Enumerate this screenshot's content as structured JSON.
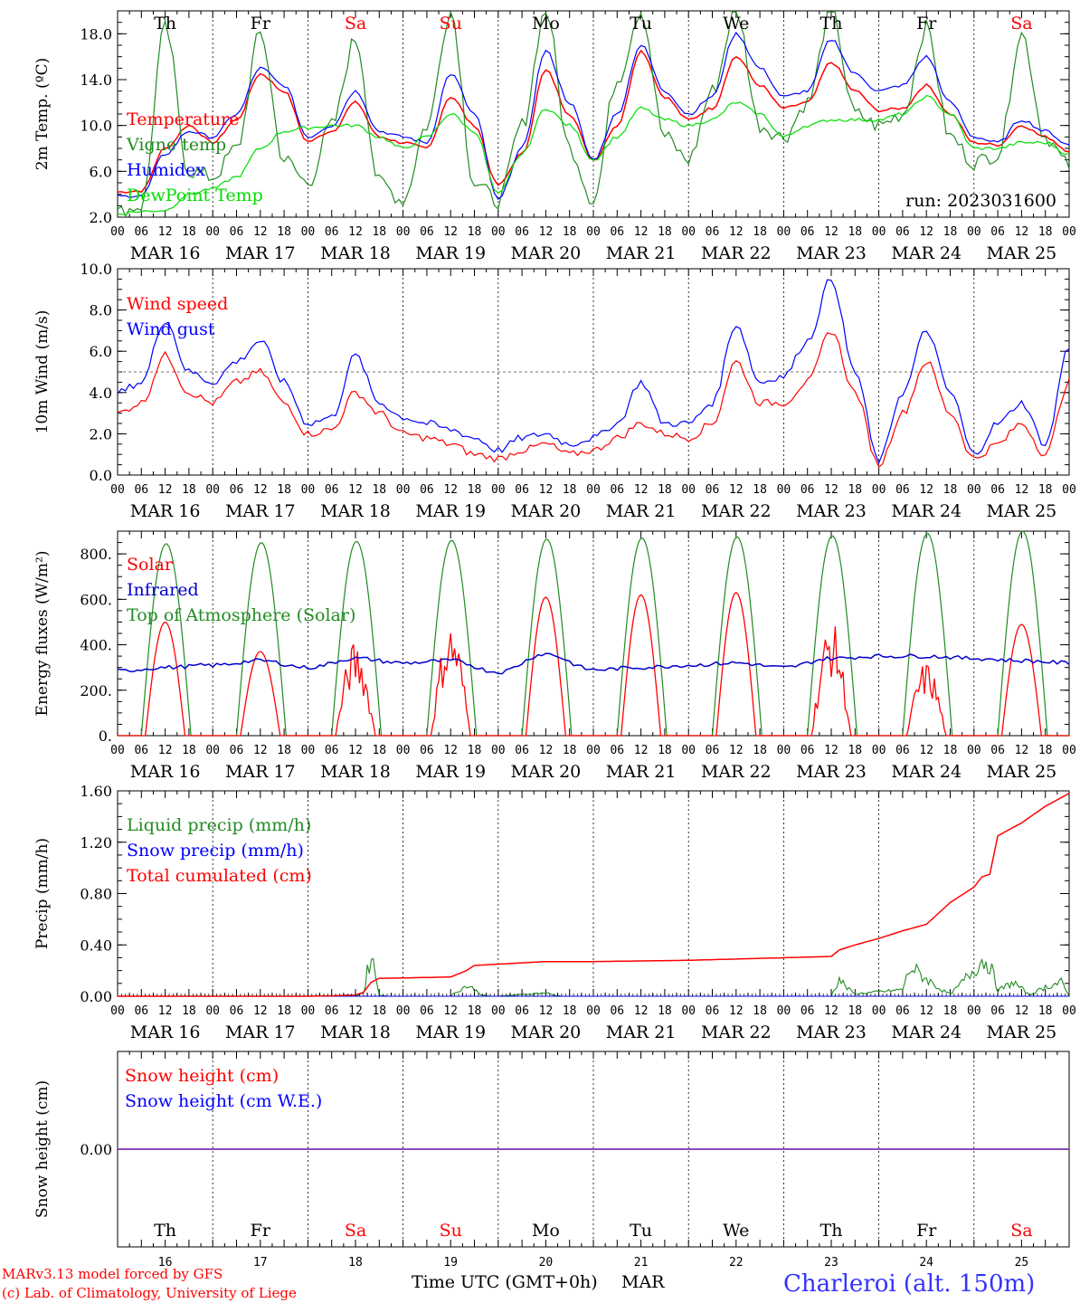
{
  "chart_data": [
    {
      "type": "line",
      "panel": "temperature",
      "ylabel": "2m Temp. (ºC)",
      "yticks": [
        "2.0",
        "6.0",
        "10.0",
        "14.0",
        "18.0"
      ],
      "ylim": [
        2,
        20
      ],
      "run_label": "run: 2023031600",
      "series": [
        {
          "name": "Temperature",
          "color": "#ff0000",
          "x": [
            0,
            6,
            12,
            18,
            24,
            30,
            36,
            42,
            48,
            54,
            60,
            66,
            72,
            78,
            84,
            90,
            96,
            102,
            108,
            114,
            120,
            126,
            132,
            138,
            144,
            150,
            156,
            162,
            168,
            174,
            180,
            186,
            192,
            198,
            204,
            210,
            216,
            222,
            228,
            234,
            240
          ],
          "values": [
            4.2,
            4.3,
            8.0,
            10.0,
            8.5,
            10.5,
            14.5,
            13.0,
            8.6,
            9.5,
            12.0,
            9.0,
            8.5,
            8.0,
            12.5,
            10.0,
            4.8,
            7.5,
            14.8,
            11.0,
            7.0,
            10.0,
            16.5,
            12.5,
            10.5,
            11.5,
            16.0,
            13.5,
            11.5,
            12.0,
            15.5,
            13.0,
            11.3,
            11.5,
            13.5,
            11.0,
            8.5,
            8.3,
            10.0,
            9.0,
            7.8
          ]
        },
        {
          "name": "Vigne temp",
          "color": "#228b22",
          "x": [
            0,
            6,
            12,
            18,
            24,
            30,
            36,
            42,
            48,
            54,
            60,
            66,
            72,
            78,
            84,
            90,
            96,
            102,
            108,
            114,
            120,
            126,
            132,
            138,
            144,
            150,
            156,
            162,
            168,
            174,
            180,
            186,
            192,
            198,
            204,
            210,
            216,
            222,
            228,
            234,
            240
          ],
          "values": [
            2.4,
            3.0,
            18.5,
            6.0,
            5.5,
            8.0,
            18.0,
            7.0,
            5.0,
            10.0,
            17.5,
            5.0,
            3.5,
            10.0,
            20.0,
            5.0,
            3.4,
            10.0,
            20.0,
            8.0,
            3.5,
            14.0,
            20.0,
            9.0,
            7.0,
            13.0,
            20.0,
            10.0,
            9.0,
            12.0,
            20.0,
            11.0,
            10.0,
            11.0,
            18.5,
            9.0,
            6.8,
            7.5,
            18.0,
            9.0,
            6.5
          ]
        },
        {
          "name": "Humidex",
          "color": "#0000ff",
          "x": [
            0,
            6,
            12,
            18,
            24,
            30,
            36,
            42,
            48,
            54,
            60,
            66,
            72,
            78,
            84,
            90,
            96,
            102,
            108,
            114,
            120,
            126,
            132,
            138,
            144,
            150,
            156,
            162,
            168,
            174,
            180,
            186,
            192,
            198,
            204,
            210,
            216,
            222,
            228,
            234,
            240
          ],
          "values": [
            3.8,
            3.9,
            7.5,
            9.5,
            9.0,
            11.0,
            15.0,
            13.5,
            9.0,
            10.0,
            13.0,
            9.5,
            9.0,
            8.5,
            14.5,
            11.0,
            3.5,
            8.0,
            16.5,
            12.0,
            7.0,
            11.0,
            17.0,
            13.0,
            11.0,
            12.5,
            18.0,
            15.0,
            12.5,
            13.0,
            17.5,
            14.5,
            13.0,
            13.5,
            16.0,
            12.0,
            9.0,
            8.5,
            10.5,
            9.5,
            8.3
          ]
        },
        {
          "name": "DewPoint Temp",
          "color": "#00dd00",
          "x": [
            0,
            6,
            12,
            18,
            24,
            30,
            36,
            42,
            48,
            54,
            60,
            66,
            72,
            78,
            84,
            90,
            96,
            102,
            108,
            114,
            120,
            126,
            132,
            138,
            144,
            150,
            156,
            162,
            168,
            174,
            180,
            186,
            192,
            198,
            204,
            210,
            216,
            222,
            228,
            234,
            240
          ],
          "values": [
            2.3,
            2.5,
            2.6,
            4.0,
            4.5,
            5.5,
            8.0,
            9.5,
            9.8,
            10.0,
            10.0,
            9.0,
            8.0,
            9.0,
            11.0,
            9.5,
            4.0,
            7.5,
            11.5,
            10.0,
            7.0,
            9.0,
            11.5,
            10.5,
            10.0,
            10.5,
            12.0,
            11.0,
            9.0,
            10.0,
            10.5,
            10.5,
            10.5,
            11.0,
            12.5,
            11.0,
            8.0,
            8.0,
            8.5,
            8.5,
            7.5
          ]
        }
      ]
    },
    {
      "type": "line",
      "panel": "wind",
      "ylabel": "10m Wind (m/s)",
      "yticks": [
        "0.0",
        "2.0",
        "4.0",
        "6.0",
        "8.0",
        "10.0"
      ],
      "ylim": [
        0,
        10
      ],
      "threshold": 5,
      "series": [
        {
          "name": "Wind speed",
          "color": "#ff0000",
          "x": [
            0,
            6,
            12,
            18,
            24,
            30,
            36,
            42,
            48,
            54,
            60,
            66,
            72,
            78,
            84,
            90,
            96,
            102,
            108,
            114,
            120,
            126,
            132,
            138,
            144,
            150,
            156,
            162,
            168,
            174,
            180,
            186,
            192,
            198,
            204,
            210,
            216,
            222,
            228,
            234,
            240
          ],
          "values": [
            3.0,
            3.5,
            5.8,
            4.0,
            3.5,
            4.5,
            5.0,
            3.5,
            2.0,
            2.2,
            4.0,
            3.0,
            2.0,
            1.8,
            1.5,
            1.0,
            0.8,
            1.2,
            1.5,
            1.0,
            1.2,
            1.8,
            2.5,
            2.0,
            1.8,
            2.5,
            5.5,
            3.5,
            3.5,
            4.5,
            7.0,
            4.0,
            0.5,
            3.0,
            5.5,
            3.0,
            0.8,
            1.5,
            2.5,
            1.0,
            4.5
          ]
        },
        {
          "name": "Wind gust",
          "color": "#0000ff",
          "x": [
            0,
            6,
            12,
            18,
            24,
            30,
            36,
            42,
            48,
            54,
            60,
            66,
            72,
            78,
            84,
            90,
            96,
            102,
            108,
            114,
            120,
            126,
            132,
            138,
            144,
            150,
            156,
            162,
            168,
            174,
            180,
            186,
            192,
            198,
            204,
            210,
            216,
            222,
            228,
            234,
            240
          ],
          "values": [
            4.0,
            4.5,
            7.5,
            5.0,
            4.5,
            5.5,
            6.5,
            4.5,
            2.5,
            2.8,
            5.8,
            3.5,
            2.8,
            2.5,
            2.2,
            1.8,
            1.2,
            1.8,
            2.0,
            1.5,
            1.8,
            2.5,
            4.5,
            2.5,
            2.5,
            3.5,
            7.3,
            4.5,
            4.8,
            6.5,
            9.5,
            5.0,
            0.7,
            4.0,
            7.0,
            4.0,
            1.0,
            2.5,
            3.5,
            1.5,
            6.2
          ]
        }
      ]
    },
    {
      "type": "line",
      "panel": "energy",
      "ylabel": "Energy fluxes (W/m²)",
      "yticks": [
        "0.",
        "200.",
        "400.",
        "600.",
        "800."
      ],
      "ylim": [
        0,
        900
      ],
      "series": [
        {
          "name": "Solar",
          "color": "#ff0000",
          "peaks": [
            500,
            370,
            380,
            460,
            610,
            620,
            630,
            460,
            300,
            490
          ]
        },
        {
          "name": "Infrared",
          "color": "#0000cc",
          "x": [
            0,
            12,
            24,
            36,
            48,
            60,
            72,
            84,
            96,
            108,
            120,
            132,
            144,
            156,
            168,
            180,
            192,
            204,
            216,
            228,
            240
          ],
          "values": [
            285,
            300,
            310,
            330,
            300,
            340,
            320,
            330,
            280,
            360,
            290,
            300,
            310,
            320,
            300,
            340,
            350,
            350,
            340,
            330,
            320
          ]
        },
        {
          "name": "Top of Atmosphere (Solar)",
          "color": "#228b22",
          "peaks": [
            845,
            850,
            855,
            860,
            865,
            870,
            875,
            880,
            890,
            900
          ]
        }
      ]
    },
    {
      "type": "line",
      "panel": "precip",
      "ylabel": "Precip (mm/h)",
      "yticks": [
        "0.00",
        "0.40",
        "0.80",
        "1.20",
        "1.60"
      ],
      "ylim": [
        0,
        1.6
      ],
      "series": [
        {
          "name": "Liquid precip (mm/h)",
          "color": "#228b22",
          "x": [
            0,
            48,
            60,
            62,
            64,
            66,
            68,
            84,
            86,
            88,
            90,
            92,
            94,
            96,
            108,
            110,
            112,
            120,
            156,
            180,
            182,
            184,
            186,
            196,
            198,
            200,
            208,
            210,
            212,
            218,
            220,
            222,
            226,
            230,
            234,
            238,
            240
          ],
          "values": [
            0,
            0,
            0,
            0.03,
            0.38,
            0.01,
            0,
            0,
            0.05,
            0.09,
            0.06,
            0.01,
            0,
            0,
            0.03,
            0.01,
            0,
            0,
            0,
            0,
            0.15,
            0.07,
            0.02,
            0.05,
            0.06,
            0.25,
            0.05,
            0.02,
            0.08,
            0.31,
            0.28,
            0.05,
            0.12,
            0.01,
            0.08,
            0.12,
            0
          ]
        },
        {
          "name": "Snow precip (mm/h)",
          "color": "#0000ff",
          "x": [
            0,
            240
          ],
          "values": [
            0,
            0
          ]
        },
        {
          "name": "Total cumulated (cm)",
          "color": "#ff0000",
          "x": [
            0,
            48,
            56,
            60,
            62,
            64,
            66,
            68,
            84,
            88,
            90,
            96,
            108,
            120,
            144,
            156,
            168,
            180,
            182,
            186,
            192,
            198,
            204,
            210,
            216,
            218,
            220,
            222,
            228,
            234,
            240
          ],
          "values": [
            0,
            0,
            0.005,
            0.01,
            0.03,
            0.11,
            0.14,
            0.14,
            0.15,
            0.2,
            0.24,
            0.25,
            0.27,
            0.27,
            0.28,
            0.29,
            0.3,
            0.31,
            0.36,
            0.4,
            0.45,
            0.51,
            0.56,
            0.73,
            0.85,
            0.93,
            0.95,
            1.25,
            1.35,
            1.48,
            1.58
          ]
        }
      ]
    },
    {
      "type": "line",
      "panel": "snow",
      "ylabel": "Snow height (cm)",
      "yticks": [
        "0.00"
      ],
      "ylim": [
        -1,
        1
      ],
      "series": [
        {
          "name": "Snow height (cm)",
          "color": "#ff0000",
          "x": [
            0,
            240
          ],
          "values": [
            0,
            0
          ]
        },
        {
          "name": "Snow height (cm W.E.)",
          "color": "#0000ff",
          "x": [
            0,
            240
          ],
          "values": [
            0,
            0
          ]
        }
      ]
    }
  ],
  "axis": {
    "hour_ticks": [
      "00",
      "06",
      "12",
      "18"
    ],
    "end_hour": "00",
    "dates": [
      "MAR 16",
      "MAR 17",
      "MAR 18",
      "MAR 19",
      "MAR 20",
      "MAR 21",
      "MAR 22",
      "MAR 23",
      "MAR 24",
      "MAR 25"
    ],
    "weekdays": [
      "Th",
      "Fr",
      "Sa",
      "Su",
      "Mo",
      "Tu",
      "We",
      "Th",
      "Fr",
      "Sa"
    ],
    "weekend_color": "#ff0000",
    "weekday_color": "#000000",
    "day_numbers": [
      "16",
      "17",
      "18",
      "19",
      "20",
      "21",
      "22",
      "23",
      "24",
      "25"
    ]
  },
  "footer": {
    "credit_line1": "MARv3.13 model forced by GFS",
    "credit_line2": "(c) Lab. of Climatology, University of Liege",
    "xlabel": "Time UTC (GMT+0h)",
    "month": "MAR",
    "station": "Charleroi (alt. 150m)"
  }
}
